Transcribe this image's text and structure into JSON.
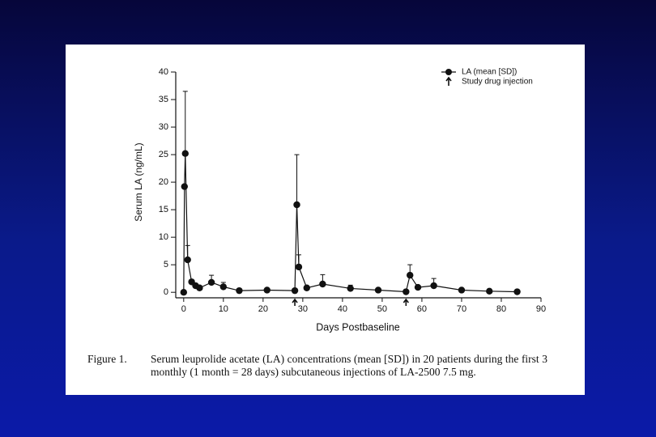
{
  "chart_data": {
    "type": "line",
    "xlabel": "Days Postbaseline",
    "ylabel": "Serum LA (ng/mL)",
    "caption_label": "Figure 1.",
    "caption": "Serum leuprolide acetate (LA) concentrations (mean [SD]) in 20 patients during the first 3 monthly (1 month = 28 days) subcutaneous injections of LA-2500 7.5 mg.",
    "xlim": [
      -2,
      90
    ],
    "xticks": [
      0,
      10,
      20,
      30,
      40,
      50,
      60,
      70,
      80,
      90
    ],
    "ylim": [
      -1,
      40
    ],
    "yticks": [
      0,
      5,
      10,
      15,
      20,
      25,
      30,
      35,
      40
    ],
    "x": [
      0,
      0.2,
      0.4,
      1,
      2,
      3,
      4,
      7,
      10,
      14,
      21,
      28,
      28.5,
      29,
      31,
      35,
      42,
      49,
      56,
      57,
      59,
      63,
      70,
      77,
      84
    ],
    "series": [
      {
        "name": "LA (mean [SD])",
        "color": "#111111",
        "values": [
          0,
          19.2,
          25.2,
          5.9,
          1.9,
          1.2,
          0.8,
          1.8,
          1.0,
          0.3,
          0.4,
          0.3,
          15.9,
          4.6,
          0.8,
          1.5,
          0.7,
          0.4,
          0.1,
          3.1,
          0.9,
          1.2,
          0.4,
          0.2,
          0.1
        ],
        "errors": [
          null,
          null,
          11.3,
          2.6,
          null,
          null,
          null,
          1.3,
          0.8,
          null,
          null,
          null,
          9.1,
          2.2,
          null,
          1.7,
          0.6,
          null,
          null,
          1.9,
          null,
          1.3,
          null,
          null,
          null
        ]
      }
    ],
    "injection_name": "Study drug injection",
    "injections": [
      28,
      56
    ]
  }
}
